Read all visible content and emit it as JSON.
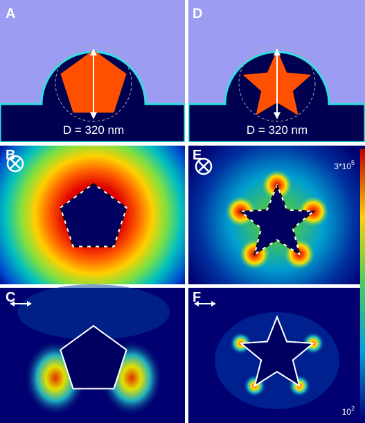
{
  "panels": [
    {
      "label": "A",
      "dimension": "D = 320 nm"
    },
    {
      "label": "D",
      "dimension": "D = 320 nm"
    },
    {
      "label": "B"
    },
    {
      "label": "E"
    },
    {
      "label": "C"
    },
    {
      "label": "F"
    }
  ],
  "colorbar": {
    "max": {
      "base": "3*10",
      "exponent": "5"
    },
    "min": {
      "base": "10",
      "exponent": "2"
    }
  }
}
